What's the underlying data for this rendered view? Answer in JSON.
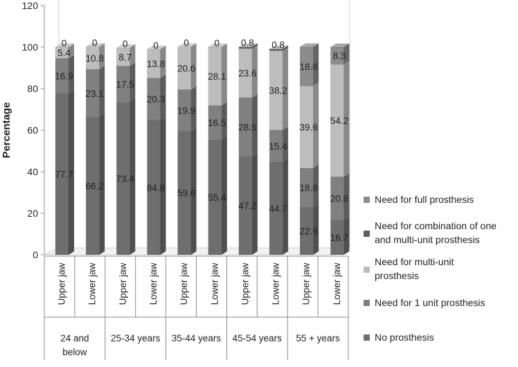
{
  "chart_data": {
    "type": "bar",
    "stacked": true,
    "three_d": true,
    "title": "",
    "ylabel": "Percentage",
    "xlabel": "",
    "ylim": [
      0,
      120
    ],
    "yticks": [
      0,
      20,
      40,
      60,
      80,
      100,
      120
    ],
    "grid": false,
    "legend_position": "right",
    "categories": [
      "Upper jaw",
      "Lower jaw",
      "Upper jaw",
      "Lower jaw",
      "Upper jaw",
      "Lower jaw",
      "Upper jaw",
      "Lower jaw",
      "Upper jaw",
      "Lower jaw"
    ],
    "groups": [
      {
        "label": "24 and below",
        "span": [
          0,
          1
        ]
      },
      {
        "label": "25-34 years",
        "span": [
          2,
          3
        ]
      },
      {
        "label": "35-44 years",
        "span": [
          4,
          5
        ]
      },
      {
        "label": "45-54 years",
        "span": [
          6,
          7
        ]
      },
      {
        "label": "55 + years",
        "span": [
          8,
          9
        ]
      }
    ],
    "series": [
      {
        "name": "No prosthesis",
        "color": "#6e6e6e",
        "values": [
          77.7,
          66.2,
          73.4,
          64.8,
          59.6,
          55.4,
          47.2,
          44.7,
          22.9,
          16.7
        ]
      },
      {
        "name": "Need for 1 unit prosthesis",
        "color": "#808080",
        "values": [
          16.9,
          23.1,
          17.5,
          20.3,
          19.9,
          16.5,
          28.5,
          15.4,
          18.8,
          20.8
        ]
      },
      {
        "name": "Need for multi-unit prosthesis",
        "color": "#bdbdbd",
        "values": [
          5.4,
          10.8,
          8.7,
          13.8,
          20.6,
          28.1,
          23.6,
          38.2,
          39.6,
          54.2
        ]
      },
      {
        "name": "Need for combination of one and multi-unit prosthesis",
        "color": "#5f5f5f",
        "values": [
          0,
          0,
          0,
          0,
          0,
          0,
          0.8,
          0.8,
          0,
          0
        ]
      },
      {
        "name": "Need for full prosthesis",
        "color": "#8c8c8c",
        "values": [
          0,
          0,
          0,
          0,
          0,
          0,
          0,
          0,
          18.8,
          8.3
        ]
      }
    ],
    "legend": [
      {
        "lines": [
          "Need for full prosthesis"
        ],
        "series": 4
      },
      {
        "lines": [
          "Need for combination of one",
          "and multi-unit prosthesis"
        ],
        "series": 3
      },
      {
        "lines": [
          "Need for multi-unit",
          "prosthesis"
        ],
        "series": 2
      },
      {
        "lines": [
          "Need for 1 unit prosthesis"
        ],
        "series": 1
      },
      {
        "lines": [
          "No prosthesis"
        ],
        "series": 0
      }
    ],
    "data_labels": [
      [
        "77.7",
        "16.9",
        "5.4",
        "0",
        ""
      ],
      [
        "66.2",
        "23.1",
        "10.8",
        "0",
        ""
      ],
      [
        "73.4",
        "17.5",
        "8.7",
        "0",
        ""
      ],
      [
        "64.8",
        "20.3",
        "13.8",
        "0",
        ""
      ],
      [
        "59.6",
        "19.9",
        "20.6",
        "0",
        ""
      ],
      [
        "55.4",
        "16.5",
        "28.1",
        "0",
        ""
      ],
      [
        "47.2",
        "28.5",
        "23.6",
        "0.8",
        ""
      ],
      [
        "44.7",
        "15.4",
        "38.2",
        "0.8",
        ""
      ],
      [
        "22.9",
        "18.8",
        "39.6",
        "",
        "18.8"
      ],
      [
        "16.7",
        "20.8",
        "54.2",
        "",
        "8.3"
      ]
    ]
  }
}
